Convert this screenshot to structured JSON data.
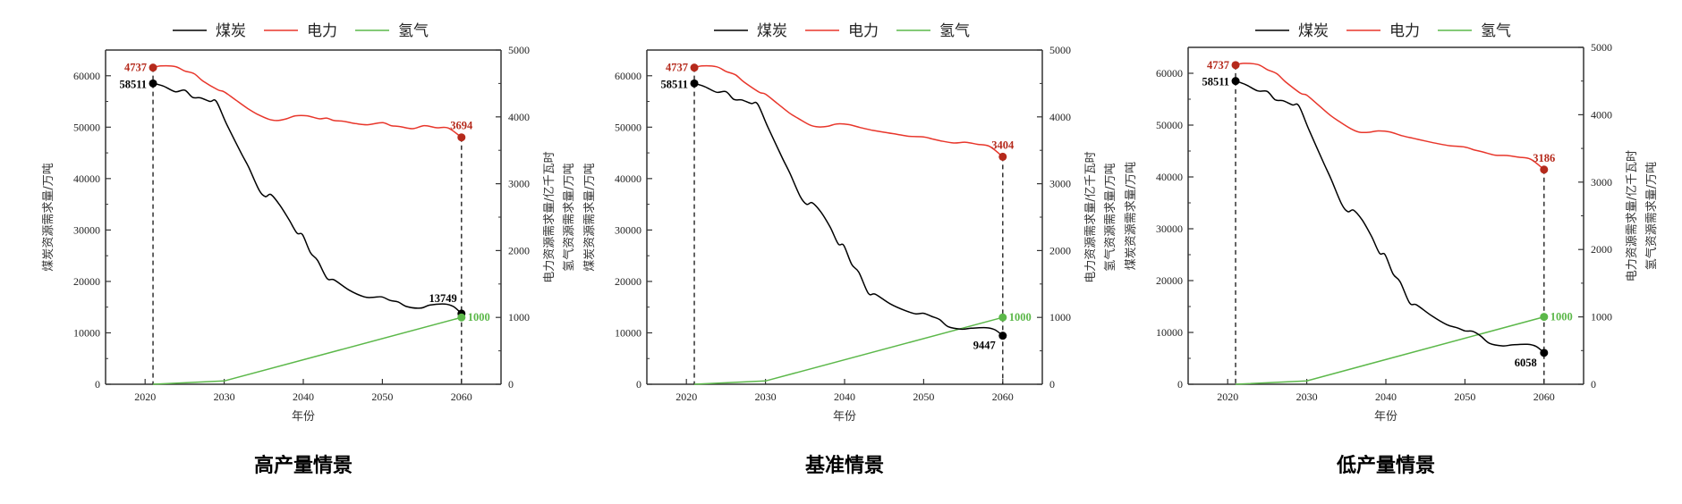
{
  "chart_data": [
    {
      "type": "line",
      "title": "高产量情景",
      "xlabel": "年份",
      "ylabel_left": "煤炭资源需求量/万吨",
      "ylabel_right": [
        "电力资源需求量/亿千瓦时",
        "氢气资源需求量/万吨"
      ],
      "xlim": [
        2015,
        2065
      ],
      "ylim_left": [
        0,
        65000
      ],
      "ylim_right": [
        0,
        5000
      ],
      "xticks": [
        2020,
        2030,
        2040,
        2050,
        2060
      ],
      "yticks_left": [
        0,
        10000,
        20000,
        30000,
        40000,
        50000,
        60000
      ],
      "yticks_right": [
        0,
        1000,
        2000,
        3000,
        4000,
        5000
      ],
      "legend": {
        "position": "top-center",
        "entries": [
          "煤炭",
          "电力",
          "氢气"
        ]
      },
      "series": [
        {
          "name": "煤炭",
          "axis": "left",
          "color": "#000000",
          "points": [
            [
              2021,
              58511
            ],
            [
              2022.3,
              58000
            ],
            [
              2023.8,
              56900
            ],
            [
              2025,
              57200
            ],
            [
              2026,
              55800
            ],
            [
              2027,
              55700
            ],
            [
              2028.2,
              55000
            ],
            [
              2029,
              55000
            ],
            [
              2030.3,
              50600
            ],
            [
              2032.2,
              44800
            ],
            [
              2033.1,
              42200
            ],
            [
              2034.4,
              37800
            ],
            [
              2035.2,
              36500
            ],
            [
              2035.9,
              36900
            ],
            [
              2037,
              34900
            ],
            [
              2038.2,
              32000
            ],
            [
              2039.2,
              29400
            ],
            [
              2039.9,
              29100
            ],
            [
              2040.9,
              25600
            ],
            [
              2041.8,
              24100
            ],
            [
              2043,
              20600
            ],
            [
              2043.9,
              20300
            ],
            [
              2045.8,
              18300
            ],
            [
              2047.7,
              17000
            ],
            [
              2048.8,
              16900
            ],
            [
              2049.9,
              17000
            ],
            [
              2051,
              16300
            ],
            [
              2052,
              16000
            ],
            [
              2053.1,
              15100
            ],
            [
              2054.8,
              14800
            ],
            [
              2056,
              15400
            ],
            [
              2057.9,
              15600
            ],
            [
              2059,
              15100
            ],
            [
              2060,
              13749
            ]
          ]
        },
        {
          "name": "电力",
          "axis": "right",
          "color": "#e8362b",
          "points": [
            [
              2021,
              4737
            ],
            [
              2022,
              4762
            ],
            [
              2023.8,
              4753
            ],
            [
              2025,
              4687
            ],
            [
              2026.2,
              4646
            ],
            [
              2027.3,
              4538
            ],
            [
              2029.2,
              4405
            ],
            [
              2030,
              4375
            ],
            [
              2031.5,
              4248
            ],
            [
              2033,
              4123
            ],
            [
              2034.1,
              4046
            ],
            [
              2035.6,
              3967
            ],
            [
              2036.7,
              3945
            ],
            [
              2037.9,
              3972
            ],
            [
              2039,
              4016
            ],
            [
              2040.5,
              4016
            ],
            [
              2042,
              3972
            ],
            [
              2043,
              3981
            ],
            [
              2043.9,
              3945
            ],
            [
              2045,
              3936
            ],
            [
              2046.6,
              3900
            ],
            [
              2048.1,
              3883
            ],
            [
              2050,
              3914
            ],
            [
              2051.1,
              3869
            ],
            [
              2052.2,
              3856
            ],
            [
              2053.8,
              3824
            ],
            [
              2055.3,
              3869
            ],
            [
              2056.8,
              3838
            ],
            [
              2058.3,
              3834
            ],
            [
              2060,
              3694
            ]
          ]
        },
        {
          "name": "氢气",
          "axis": "right",
          "color": "#5cb84a",
          "points": [
            [
              2021,
              0
            ],
            [
              2030,
              50
            ],
            [
              2060,
              1000
            ]
          ]
        }
      ],
      "annotations": {
        "electricity_start": "4737",
        "coal_start": "58511",
        "electricity_end": "3694",
        "coal_end": "13749",
        "hydrogen_end": "1000"
      }
    },
    {
      "type": "line",
      "title": "基准情景",
      "xlabel": "年份",
      "ylabel_left": "煤炭资源需求量/万吨",
      "ylabel_right": [
        "电力资源需求量/亿千瓦时",
        "氢气资源需求量/万吨"
      ],
      "xlim": [
        2015,
        2065
      ],
      "ylim_left": [
        0,
        65000
      ],
      "ylim_right": [
        0,
        5000
      ],
      "xticks": [
        2020,
        2030,
        2040,
        2050,
        2060
      ],
      "yticks_left": [
        0,
        10000,
        20000,
        30000,
        40000,
        50000,
        60000
      ],
      "yticks_right": [
        0,
        1000,
        2000,
        3000,
        4000,
        5000
      ],
      "legend": {
        "position": "top-center",
        "entries": [
          "煤炭",
          "电力",
          "氢气"
        ]
      },
      "series": [
        {
          "name": "煤炭",
          "axis": "left",
          "color": "#000000",
          "points": [
            [
              2021,
              58511
            ],
            [
              2022.3,
              57900
            ],
            [
              2023.8,
              56800
            ],
            [
              2025,
              56900
            ],
            [
              2026,
              55400
            ],
            [
              2027,
              55300
            ],
            [
              2028.2,
              54600
            ],
            [
              2029,
              54500
            ],
            [
              2030.3,
              50000
            ],
            [
              2032.2,
              43800
            ],
            [
              2033.1,
              41000
            ],
            [
              2034.4,
              36500
            ],
            [
              2035.2,
              35000
            ],
            [
              2035.9,
              35300
            ],
            [
              2037,
              33500
            ],
            [
              2038.2,
              30500
            ],
            [
              2039.2,
              27300
            ],
            [
              2039.9,
              27000
            ],
            [
              2040.9,
              23300
            ],
            [
              2041.8,
              21800
            ],
            [
              2043,
              17700
            ],
            [
              2043.9,
              17500
            ],
            [
              2045.8,
              15600
            ],
            [
              2047.7,
              14300
            ],
            [
              2049,
              13700
            ],
            [
              2050,
              13800
            ],
            [
              2051,
              13200
            ],
            [
              2052,
              12600
            ],
            [
              2053.1,
              11200
            ],
            [
              2054.8,
              10700
            ],
            [
              2056,
              10900
            ],
            [
              2057.9,
              11000
            ],
            [
              2059,
              10600
            ],
            [
              2060,
              9447
            ]
          ]
        },
        {
          "name": "电力",
          "axis": "right",
          "color": "#e8362b",
          "points": [
            [
              2021,
              4737
            ],
            [
              2022,
              4762
            ],
            [
              2023.8,
              4750
            ],
            [
              2025,
              4680
            ],
            [
              2026.2,
              4630
            ],
            [
              2027.3,
              4520
            ],
            [
              2029.2,
              4370
            ],
            [
              2030,
              4340
            ],
            [
              2031.5,
              4200
            ],
            [
              2033,
              4060
            ],
            [
              2034.1,
              3980
            ],
            [
              2035.6,
              3880
            ],
            [
              2036.7,
              3850
            ],
            [
              2037.9,
              3860
            ],
            [
              2039,
              3895
            ],
            [
              2040.5,
              3885
            ],
            [
              2042,
              3840
            ],
            [
              2043.5,
              3800
            ],
            [
              2045,
              3770
            ],
            [
              2046.6,
              3740
            ],
            [
              2048.1,
              3710
            ],
            [
              2050,
              3700
            ],
            [
              2051.1,
              3670
            ],
            [
              2052.2,
              3640
            ],
            [
              2053.8,
              3610
            ],
            [
              2055.3,
              3620
            ],
            [
              2056.8,
              3590
            ],
            [
              2058.3,
              3560
            ],
            [
              2060,
              3404
            ]
          ]
        },
        {
          "name": "氢气",
          "axis": "right",
          "color": "#5cb84a",
          "points": [
            [
              2021,
              0
            ],
            [
              2030,
              50
            ],
            [
              2060,
              1000
            ]
          ]
        }
      ],
      "annotations": {
        "electricity_start": "4737",
        "coal_start": "58511",
        "electricity_end": "3404",
        "coal_end": "9447",
        "hydrogen_end": "1000"
      }
    },
    {
      "type": "line",
      "title": "低产量情景",
      "xlabel": "年份",
      "ylabel_left": "煤炭资源需求量/万吨",
      "ylabel_right": [
        "电力资源需求量/亿千瓦时",
        "氢气资源需求量/万吨"
      ],
      "xlim": [
        2015,
        2065
      ],
      "ylim_left": [
        0,
        65000
      ],
      "ylim_right": [
        0,
        5000
      ],
      "xticks": [
        2020,
        2030,
        2040,
        2050,
        2060
      ],
      "yticks_left": [
        0,
        10000,
        20000,
        30000,
        40000,
        50000,
        60000
      ],
      "yticks_right": [
        0,
        1000,
        2000,
        3000,
        4000,
        5000
      ],
      "legend": {
        "position": "top-center",
        "entries": [
          "煤炭",
          "电力",
          "氢气"
        ]
      },
      "series": [
        {
          "name": "煤炭",
          "axis": "left",
          "color": "#000000",
          "points": [
            [
              2021,
              58511
            ],
            [
              2022.3,
              57800
            ],
            [
              2023.8,
              56600
            ],
            [
              2025,
              56500
            ],
            [
              2026,
              54900
            ],
            [
              2027,
              54700
            ],
            [
              2028.2,
              53900
            ],
            [
              2029,
              53700
            ],
            [
              2030.3,
              49000
            ],
            [
              2032.2,
              42500
            ],
            [
              2033.1,
              39500
            ],
            [
              2034.4,
              34800
            ],
            [
              2035.2,
              33300
            ],
            [
              2035.9,
              33600
            ],
            [
              2037,
              31700
            ],
            [
              2038.2,
              28500
            ],
            [
              2039.2,
              25300
            ],
            [
              2039.9,
              25000
            ],
            [
              2040.9,
              21300
            ],
            [
              2041.8,
              19800
            ],
            [
              2043,
              15700
            ],
            [
              2043.9,
              15300
            ],
            [
              2045.8,
              13200
            ],
            [
              2047.7,
              11500
            ],
            [
              2049,
              10900
            ],
            [
              2050,
              10300
            ],
            [
              2051,
              10200
            ],
            [
              2052,
              9300
            ],
            [
              2053.1,
              7900
            ],
            [
              2054.8,
              7400
            ],
            [
              2056,
              7600
            ],
            [
              2057.9,
              7700
            ],
            [
              2059,
              7300
            ],
            [
              2060,
              6058
            ]
          ]
        },
        {
          "name": "电力",
          "axis": "right",
          "color": "#e8362b",
          "points": [
            [
              2021,
              4737
            ],
            [
              2022,
              4762
            ],
            [
              2023.8,
              4745
            ],
            [
              2025,
              4670
            ],
            [
              2026.2,
              4610
            ],
            [
              2027.3,
              4490
            ],
            [
              2029.2,
              4320
            ],
            [
              2030,
              4290
            ],
            [
              2031.5,
              4140
            ],
            [
              2033,
              3990
            ],
            [
              2034.1,
              3900
            ],
            [
              2035.6,
              3790
            ],
            [
              2036.7,
              3740
            ],
            [
              2037.9,
              3740
            ],
            [
              2039,
              3760
            ],
            [
              2040.5,
              3745
            ],
            [
              2042,
              3690
            ],
            [
              2043.5,
              3650
            ],
            [
              2045,
              3610
            ],
            [
              2046.6,
              3570
            ],
            [
              2048.1,
              3540
            ],
            [
              2050,
              3520
            ],
            [
              2051.1,
              3480
            ],
            [
              2052.2,
              3450
            ],
            [
              2053.8,
              3400
            ],
            [
              2055.3,
              3395
            ],
            [
              2056.8,
              3370
            ],
            [
              2058.3,
              3340
            ],
            [
              2060,
              3186
            ]
          ]
        },
        {
          "name": "氢气",
          "axis": "right",
          "color": "#5cb84a",
          "points": [
            [
              2021,
              0
            ],
            [
              2030,
              50
            ],
            [
              2060,
              1000
            ]
          ]
        }
      ],
      "annotations": {
        "electricity_start": "4737",
        "coal_start": "58511",
        "electricity_end": "3186",
        "coal_end": "6058",
        "hydrogen_end": "1000"
      }
    }
  ]
}
